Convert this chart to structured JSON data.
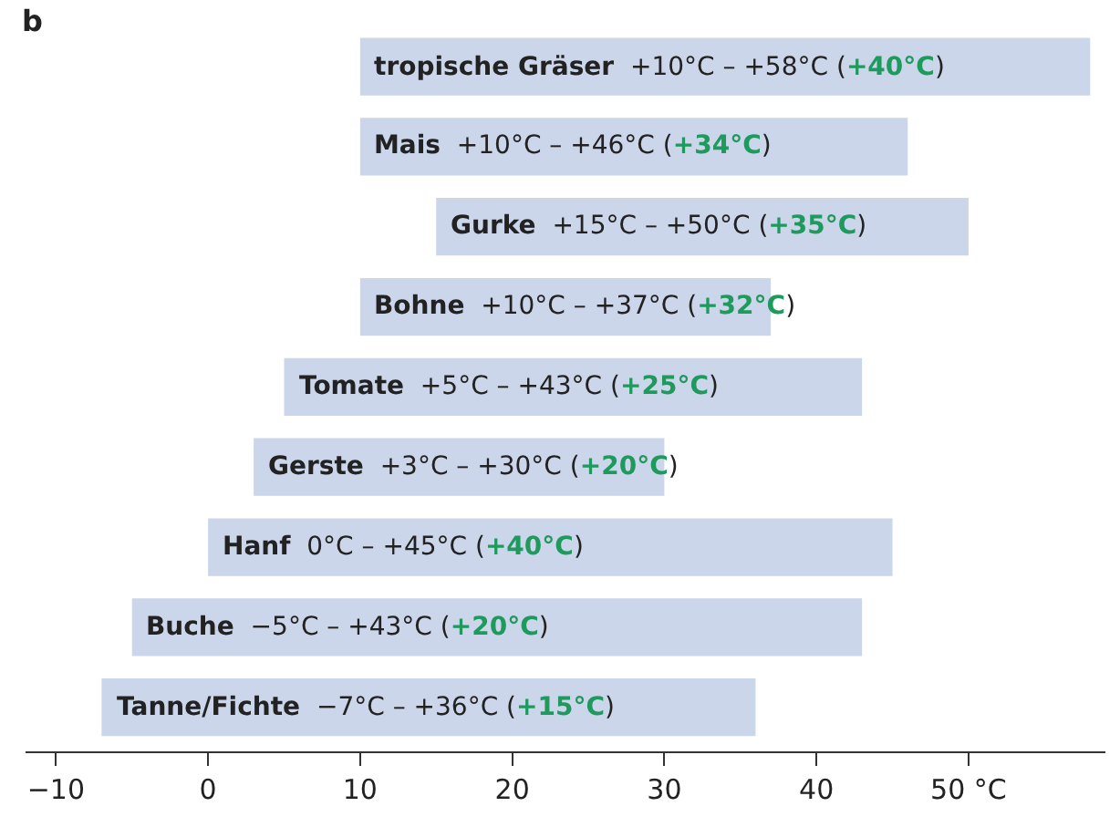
{
  "chart_data": {
    "type": "bar",
    "orientation": "horizontal",
    "title": "b",
    "categories": [
      "tropische Gräser",
      "Mais",
      "Gurke",
      "Bohne",
      "Tomate",
      "Gerste",
      "Hanf",
      "Buche",
      "Tanne/Fichte"
    ],
    "base": [
      10,
      10,
      15,
      10,
      5,
      3,
      0,
      -5,
      -7
    ],
    "values": [
      48,
      36,
      35,
      27,
      38,
      27,
      45,
      48,
      43
    ],
    "annotations": [
      "+10°C – +58°C (+40°C)",
      "+10°C – +46°C (+34°C)",
      "+15°C – +50°C (+35°C)",
      "+10°C – +37°C (+32°C)",
      "+5°C – +43°C (+25°C)",
      "+3°C – +30°C (+20°C)",
      "0°C – +45°C (+40°C)",
      "−5°C – +43°C (+20°C)",
      "−7°C – +36°C (+15°C)"
    ],
    "color": "#cbd6ea",
    "xlim": [
      -12,
      59
    ],
    "xticks": [
      {
        "value": -10,
        "label": "−10"
      },
      0,
      10,
      20,
      30,
      40,
      {
        "value": 50,
        "label": "50 °C"
      }
    ],
    "tick_labels": "x",
    "grid": false
  }
}
